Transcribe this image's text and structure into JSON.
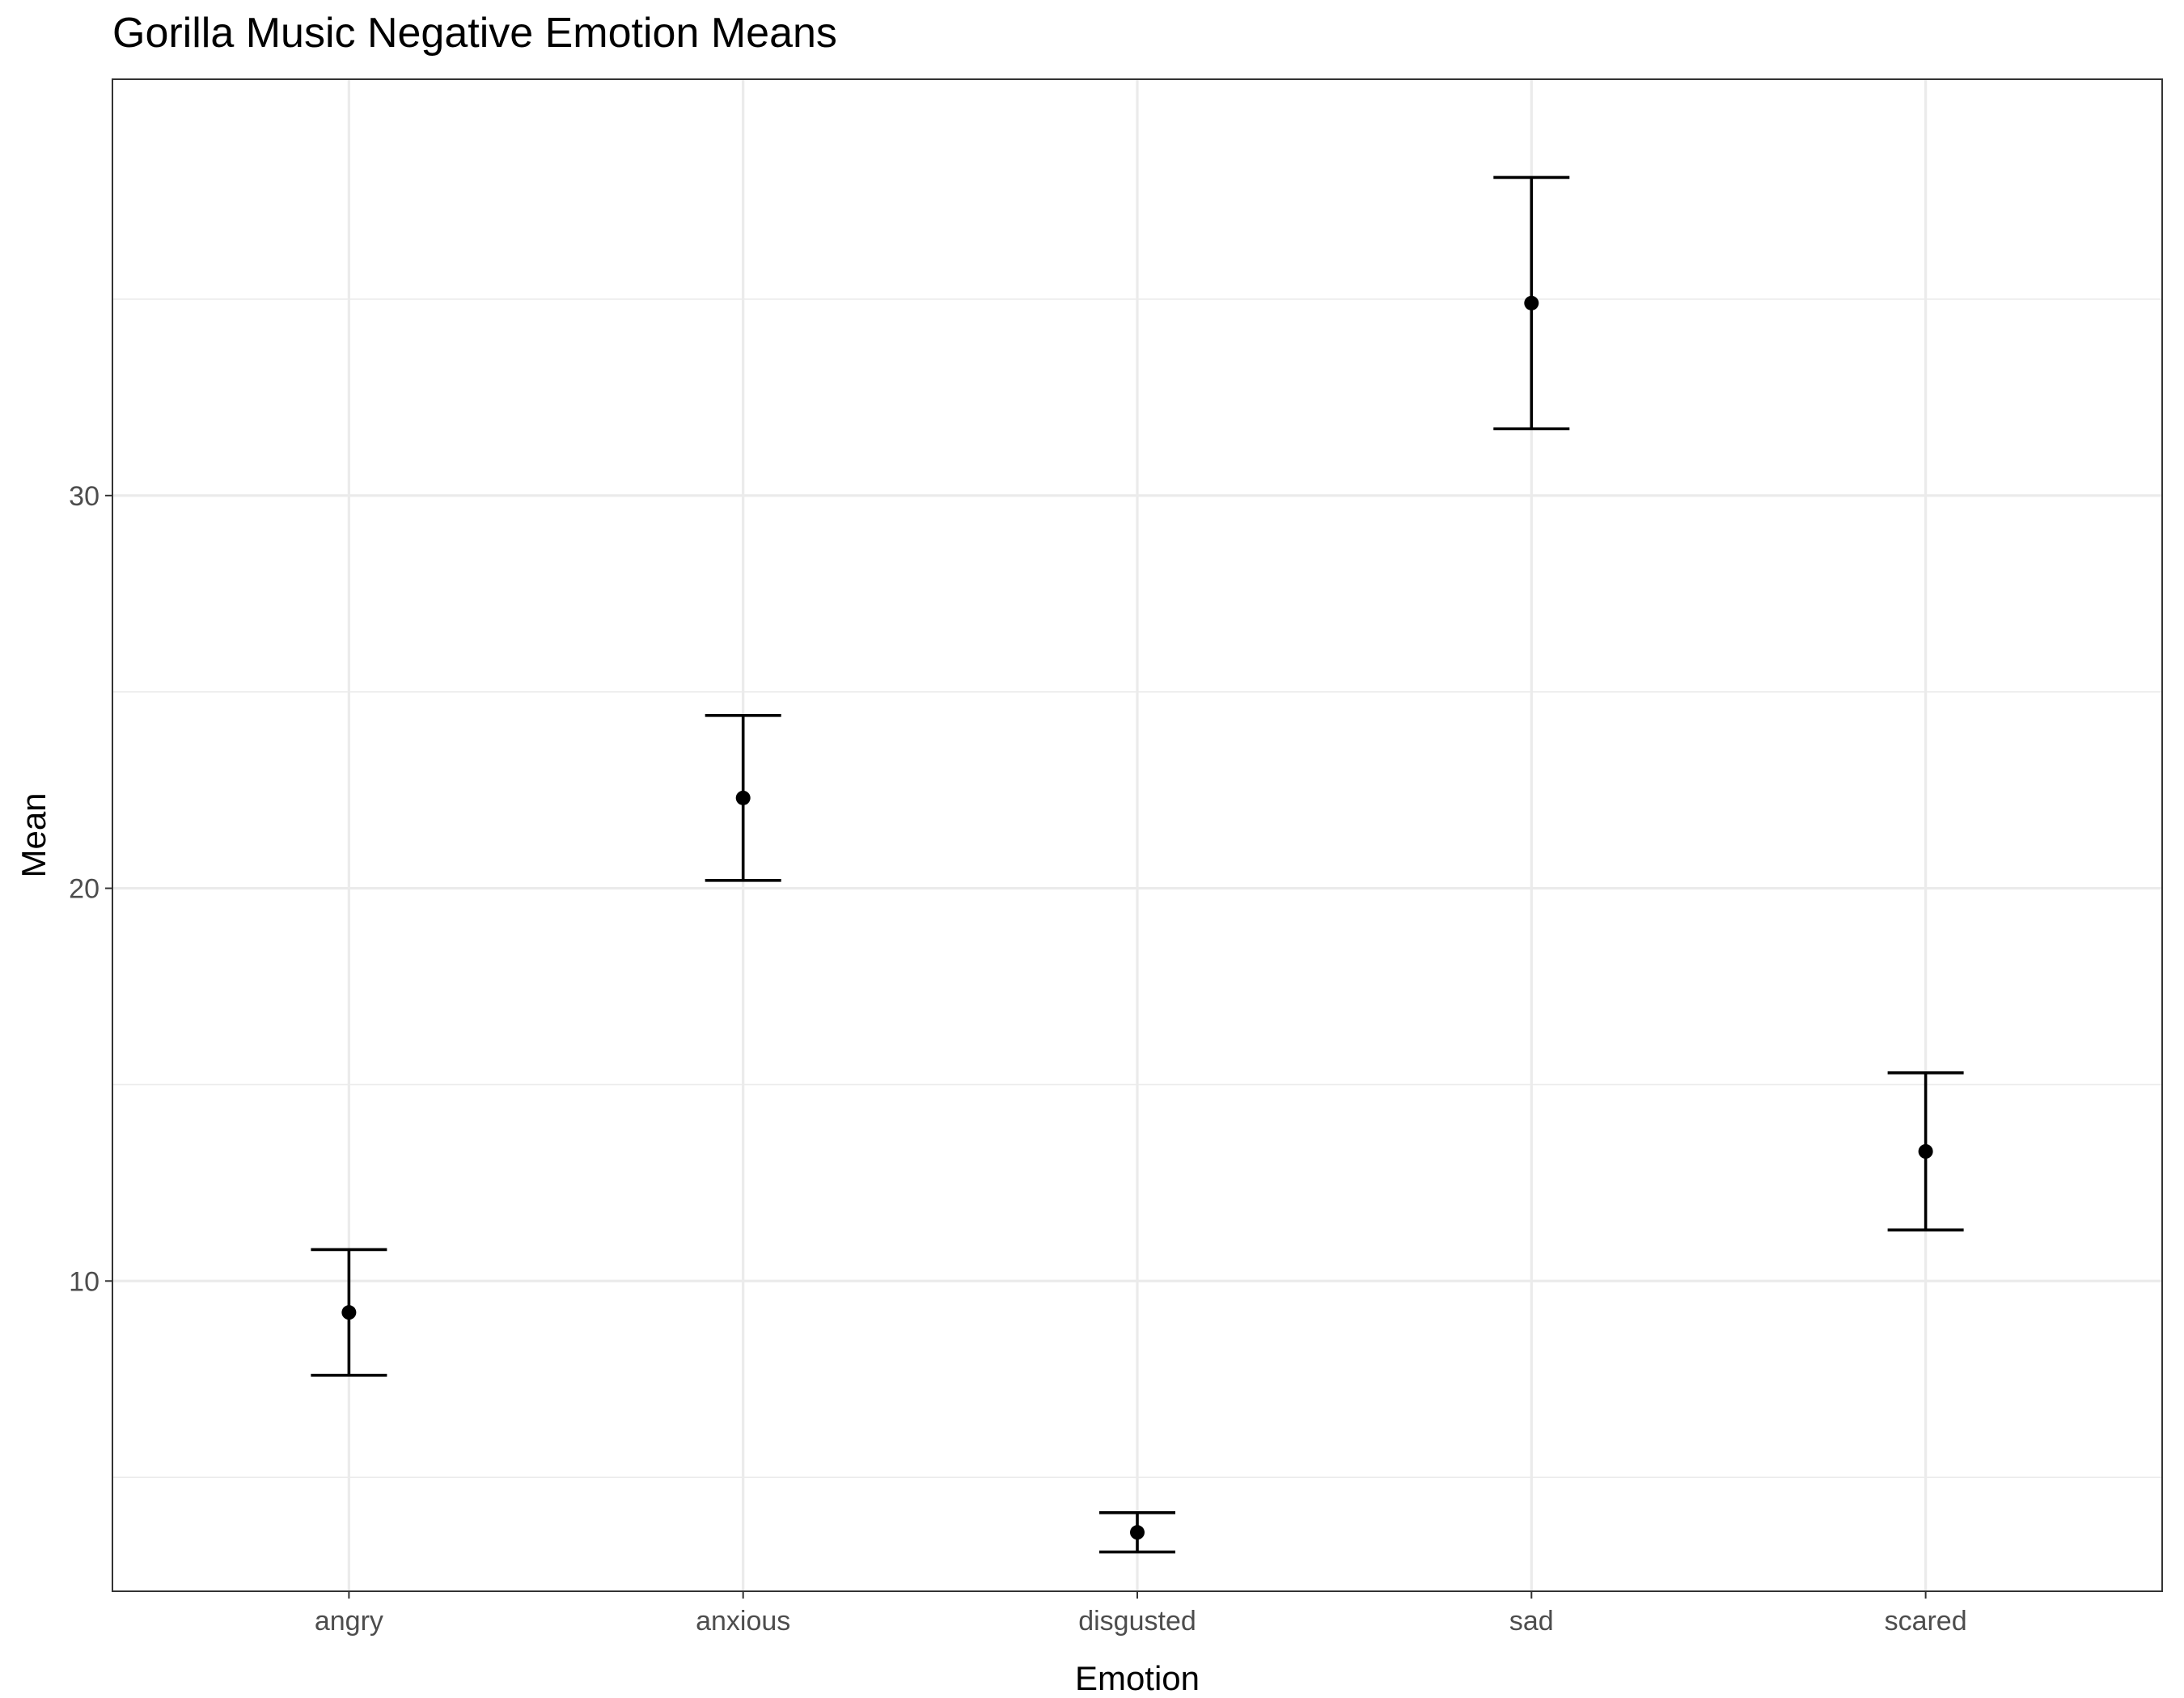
{
  "chart_data": {
    "type": "scatter",
    "title": "Gorilla Music Negative Emotion Means",
    "xlabel": "Emotion",
    "ylabel": "Mean",
    "categories": [
      "angry",
      "anxious",
      "disgusted",
      "sad",
      "scared"
    ],
    "series": [
      {
        "values": [
          9.2,
          22.3,
          3.6,
          34.9,
          13.3
        ],
        "error_lower": [
          7.6,
          20.2,
          3.1,
          31.7,
          11.3
        ],
        "error_upper": [
          10.8,
          24.4,
          4.1,
          38.1,
          15.3
        ]
      }
    ],
    "ylim": [
      2.1,
      40.6
    ],
    "yticks": [
      10,
      20,
      30
    ],
    "grid": true,
    "legend": "none",
    "colors": {
      "points": "#000000",
      "grid": "#ebebeb",
      "border": "#333333",
      "tick_label": "#4d4d4d"
    }
  }
}
